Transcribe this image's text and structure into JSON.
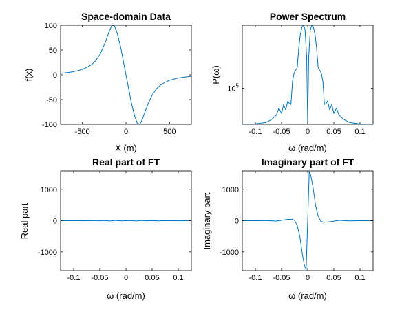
{
  "figure": {
    "line_color": "#0072BD"
  },
  "chart_data": [
    {
      "type": "line",
      "title": "Space-domain Data",
      "xlabel": "X (m)",
      "ylabel": "f(x)",
      "xlim": [
        -750,
        750
      ],
      "ylim": [
        -100,
        100
      ],
      "xticks": [
        -500,
        0,
        500
      ],
      "xtick_labels": [
        "-500",
        "0",
        "500"
      ],
      "yticks": [
        -100,
        -50,
        0,
        50,
        100
      ],
      "ytick_labels": [
        "-100",
        "-50",
        "0",
        "50",
        "100"
      ],
      "grid": false,
      "series": [
        {
          "x": [
            -750,
            -700,
            -650,
            -600,
            -550,
            -500,
            -450,
            -400,
            -350,
            -300,
            -260,
            -220,
            -190,
            -160,
            -130,
            -100,
            -60,
            -20,
            20,
            60,
            100,
            130,
            160,
            190,
            220,
            260,
            300,
            350,
            400,
            450,
            500,
            550,
            600,
            650,
            700,
            750
          ],
          "y": [
            3,
            4,
            5,
            6.5,
            8.5,
            11,
            15,
            20,
            28,
            41,
            56,
            74,
            89,
            100,
            98,
            84,
            55,
            18,
            -18,
            -55,
            -84,
            -98,
            -100,
            -89,
            -74,
            -56,
            -41,
            -28,
            -20,
            -15,
            -11,
            -8.5,
            -6.5,
            -5,
            -4,
            -3
          ]
        }
      ]
    },
    {
      "type": "line",
      "title": "Power Spectrum",
      "xlabel": "ω (rad/m)",
      "ylabel": "P(ω)",
      "xlim": [
        -0.125,
        0.125
      ],
      "ylim": [
        1,
        12
      ],
      "yscale": "log",
      "xticks": [
        -0.1,
        -0.05,
        0,
        0.05,
        0.1
      ],
      "xtick_labels": [
        "-0.1",
        "-0.05",
        "0",
        "0.05",
        "0.1"
      ],
      "yticks": [
        5
      ],
      "ytick_labels": [
        "10^5"
      ],
      "grid": false,
      "series": [
        {
          "x": [
            -0.125,
            -0.1,
            -0.08,
            -0.07,
            -0.06,
            -0.055,
            -0.05,
            -0.046,
            -0.042,
            -0.038,
            -0.035,
            -0.032,
            -0.029,
            -0.026,
            -0.023,
            -0.02,
            -0.017,
            -0.014,
            -0.011,
            -0.008,
            -0.005,
            -0.002,
            0,
            0.002,
            0.005,
            0.008,
            0.011,
            0.014,
            0.017,
            0.02,
            0.023,
            0.026,
            0.029,
            0.032,
            0.035,
            0.038,
            0.042,
            0.046,
            0.05,
            0.055,
            0.06,
            0.07,
            0.08,
            0.1,
            0.125
          ],
          "y": [
            1,
            1.05,
            1.2,
            1.5,
            2,
            2.8,
            2.2,
            3.2,
            2.6,
            3.6,
            3.3,
            3.2,
            5.8,
            6.7,
            7,
            7.3,
            9.5,
            11,
            11.8,
            12,
            11.5,
            8.5,
            1,
            8.5,
            11.5,
            12,
            11.8,
            11,
            9.5,
            7.3,
            7,
            6.7,
            5.8,
            3.2,
            3.3,
            3.6,
            2.6,
            3.2,
            2.2,
            2.8,
            2,
            1.5,
            1.2,
            1.05,
            1
          ]
        }
      ]
    },
    {
      "type": "line",
      "title": "Real part of FT",
      "xlabel": "ω (rad/m)",
      "ylabel": "Real part",
      "xlim": [
        -0.125,
        0.125
      ],
      "ylim": [
        -1600,
        1600
      ],
      "xticks": [
        -0.1,
        -0.05,
        0,
        0.05,
        0.1
      ],
      "xtick_labels": [
        "-0.1",
        "-0.05",
        "0",
        "0.05",
        "0.1"
      ],
      "yticks": [
        -1000,
        0,
        1000
      ],
      "ytick_labels": [
        "-1000",
        "0",
        "1000"
      ],
      "grid": false,
      "series": [
        {
          "x": [
            -0.125,
            -0.1,
            -0.08,
            -0.06,
            -0.05,
            -0.04,
            -0.03,
            -0.02,
            -0.01,
            0,
            0.01,
            0.02,
            0.03,
            0.04,
            0.05,
            0.06,
            0.08,
            0.1,
            0.125
          ],
          "y": [
            0,
            3,
            -4,
            5,
            -6,
            6,
            -8,
            8,
            -6,
            0,
            6,
            -8,
            8,
            -6,
            6,
            -5,
            4,
            -3,
            0
          ]
        }
      ]
    },
    {
      "type": "line",
      "title": "Imaginary part of FT",
      "xlabel": "ω (rad/m)",
      "ylabel": "Imaginary part",
      "xlim": [
        -0.125,
        0.125
      ],
      "ylim": [
        -1600,
        1600
      ],
      "xticks": [
        -0.1,
        -0.05,
        0,
        0.05,
        0.1
      ],
      "xtick_labels": [
        "-0.1",
        "-0.05",
        "0",
        "0.05",
        "0.1"
      ],
      "yticks": [
        -1000,
        0,
        1000
      ],
      "ytick_labels": [
        "-1000",
        "0",
        "1000"
      ],
      "grid": false,
      "series": [
        {
          "x": [
            -0.125,
            -0.1,
            -0.08,
            -0.06,
            -0.05,
            -0.04,
            -0.03,
            -0.025,
            -0.02,
            -0.015,
            -0.01,
            -0.006,
            -0.003,
            0,
            0.003,
            0.006,
            0.01,
            0.015,
            0.02,
            0.025,
            0.03,
            0.04,
            0.05,
            0.06,
            0.08,
            0.1,
            0.125
          ],
          "y": [
            0,
            0,
            5,
            -10,
            15,
            40,
            50,
            10,
            -150,
            -500,
            -1100,
            -1450,
            -1580,
            0,
            1580,
            1450,
            1100,
            500,
            150,
            -10,
            -50,
            -40,
            -15,
            10,
            -5,
            0,
            0
          ]
        }
      ]
    }
  ]
}
